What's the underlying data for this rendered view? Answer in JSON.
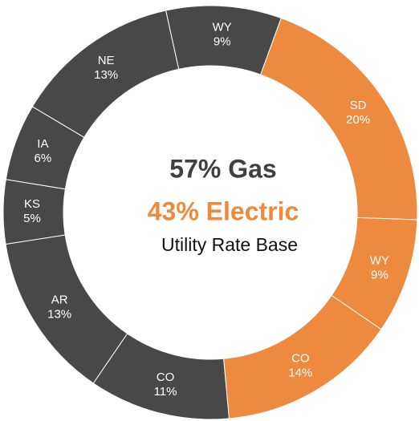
{
  "chart_data": {
    "type": "donut",
    "categories": [
      "SD",
      "WY",
      "CO",
      "CO",
      "AR",
      "KS",
      "IA",
      "NE",
      "WY"
    ],
    "values": [
      20,
      9,
      14,
      11,
      13,
      5,
      6,
      13,
      9
    ],
    "value_labels": [
      "20%",
      "9%",
      "14%",
      "11%",
      "13%",
      "5%",
      "6%",
      "13%",
      "9%"
    ],
    "colors": [
      "#ed8a3f",
      "#ed8a3f",
      "#ed8a3f",
      "#484848",
      "#484848",
      "#484848",
      "#484848",
      "#484848",
      "#484848"
    ],
    "annotations": [
      "57% Gas",
      "43% Electric",
      "Utility Rate Base"
    ]
  }
}
